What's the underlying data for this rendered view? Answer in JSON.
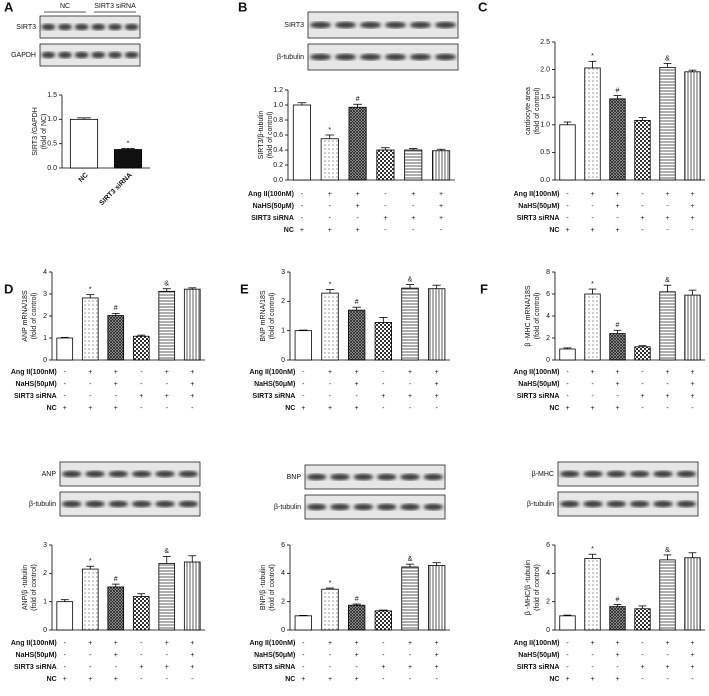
{
  "chart_data": [
    {
      "type": "bar",
      "label": "A",
      "blot_groups": [
        "NC",
        "SIRT3 siRNA"
      ],
      "blot_labels": [
        "SIRT3",
        "GAPDH"
      ],
      "ylabel": [
        "SIRT3 /GAPDH",
        "(fold of NC)"
      ],
      "categories": [
        "NC",
        "SIRT3 siRNA"
      ],
      "values": [
        1.0,
        0.38
      ],
      "errors": [
        0.03,
        0.02
      ],
      "significance": [
        null,
        "*"
      ],
      "ylim": [
        0,
        1.5
      ],
      "yticks": [
        {
          "value": 0,
          "label": "0.0"
        },
        0.5,
        {
          "value": 1,
          "label": "1.0"
        },
        1.5
      ]
    },
    {
      "type": "bar",
      "label": "B",
      "blot_labels": [
        "SIRT3",
        "β-tubulin"
      ],
      "ylabel": [
        "SIRT3/β-tubulin",
        "(fold of control)"
      ],
      "values": [
        1.0,
        0.55,
        0.97,
        0.4,
        0.4,
        0.39
      ],
      "errors": [
        0.03,
        0.05,
        0.04,
        0.03,
        0.02,
        0.02
      ],
      "significance": [
        null,
        "*",
        "#",
        null,
        null,
        null
      ],
      "ylim": [
        0,
        1.2
      ],
      "yticks": [
        {
          "value": 0,
          "label": "0.0"
        },
        0.2,
        0.4,
        0.6,
        0.8,
        {
          "value": 1,
          "label": "1.0"
        },
        1.2
      ],
      "treatments": [
        {
          "name": "Ang II(100nM)",
          "signs": [
            "-",
            "+",
            "+",
            "-",
            "+",
            "+"
          ]
        },
        {
          "name": "NaHS(50μM)",
          "signs": [
            "-",
            "-",
            "+",
            "-",
            "-",
            "+"
          ]
        },
        {
          "name": "SIRT3 siRNA",
          "signs": [
            "-",
            "-",
            "-",
            "+",
            "+",
            "+"
          ]
        },
        {
          "name": "NC",
          "signs": [
            "+",
            "+",
            "+",
            "-",
            "-",
            "-"
          ]
        }
      ]
    },
    {
      "type": "bar",
      "label": "C",
      "ylabel": [
        "cardiocyte area",
        "(fold of control)"
      ],
      "values": [
        1.0,
        2.03,
        1.47,
        1.08,
        2.04,
        1.96
      ],
      "errors": [
        0.05,
        0.12,
        0.06,
        0.05,
        0.07,
        0.03
      ],
      "significance": [
        null,
        "*",
        "#",
        null,
        "&",
        null
      ],
      "ylim": [
        0,
        2.5
      ],
      "yticks": [
        {
          "value": 0,
          "label": "0.0"
        },
        0.5,
        {
          "value": 1,
          "label": "1.0"
        },
        1.5,
        {
          "value": 2,
          "label": "2.0"
        },
        2.5
      ],
      "treatments": [
        {
          "name": "Ang II(100nM)",
          "signs": [
            "-",
            "+",
            "+",
            "-",
            "+",
            "+"
          ]
        },
        {
          "name": "NaHS(50μM)",
          "signs": [
            "-",
            "-",
            "+",
            "-",
            "-",
            "+"
          ]
        },
        {
          "name": "SIRT3 siRNA",
          "signs": [
            "-",
            "-",
            "-",
            "+",
            "+",
            "+"
          ]
        },
        {
          "name": "NC",
          "signs": [
            "+",
            "+",
            "+",
            "-",
            "-",
            "-"
          ]
        }
      ]
    },
    {
      "type": "bar",
      "label": "D",
      "ylabel": [
        "ANP mRNA/18S",
        "(fold of control)"
      ],
      "values": [
        1.0,
        2.82,
        2.02,
        1.08,
        3.12,
        3.22
      ],
      "errors": [
        0.03,
        0.15,
        0.1,
        0.05,
        0.12,
        0.06
      ],
      "significance": [
        null,
        "*",
        "#",
        null,
        "&",
        null
      ],
      "ylim": [
        0,
        4
      ],
      "yticks": [
        0,
        1,
        2,
        3,
        4
      ],
      "treatments": [
        {
          "name": "Ang II(100nM)",
          "signs": [
            "-",
            "+",
            "+",
            "-",
            "+",
            "+"
          ]
        },
        {
          "name": "NaHS(50μM)",
          "signs": [
            "-",
            "-",
            "+",
            "-",
            "-",
            "+"
          ]
        },
        {
          "name": "SIRT3 siRNA",
          "signs": [
            "-",
            "-",
            "-",
            "+",
            "+",
            "+"
          ]
        },
        {
          "name": "NC",
          "signs": [
            "+",
            "+",
            "+",
            "-",
            "-",
            "-"
          ]
        }
      ]
    },
    {
      "type": "bar",
      "label": "E",
      "ylabel": [
        "BNP mRNA/18S",
        "(fold of control)"
      ],
      "values": [
        1.0,
        2.28,
        1.7,
        1.28,
        2.45,
        2.43
      ],
      "errors": [
        0.02,
        0.12,
        0.1,
        0.17,
        0.12,
        0.12
      ],
      "significance": [
        null,
        "*",
        "#",
        null,
        "&",
        null
      ],
      "ylim": [
        0,
        3
      ],
      "yticks": [
        0,
        1,
        2,
        3
      ],
      "treatments": [
        {
          "name": "Ang II(100nM)",
          "signs": [
            "-",
            "+",
            "+",
            "-",
            "+",
            "+"
          ]
        },
        {
          "name": "NaHS(50μM)",
          "signs": [
            "-",
            "-",
            "+",
            "-",
            "-",
            "+"
          ]
        },
        {
          "name": "SIRT3 siRNA",
          "signs": [
            "-",
            "-",
            "-",
            "+",
            "+",
            "+"
          ]
        },
        {
          "name": "NC",
          "signs": [
            "+",
            "+",
            "+",
            "-",
            "-",
            "-"
          ]
        }
      ]
    },
    {
      "type": "bar",
      "label": "F",
      "ylabel": [
        "β -MHC mRNA/18S",
        "(fold of control)"
      ],
      "values": [
        1.0,
        6.0,
        2.4,
        1.2,
        6.2,
        5.9
      ],
      "errors": [
        0.1,
        0.45,
        0.3,
        0.1,
        0.6,
        0.45
      ],
      "significance": [
        null,
        "*",
        "#",
        null,
        "&",
        null
      ],
      "ylim": [
        0,
        8
      ],
      "yticks": [
        0,
        2,
        4,
        6,
        8
      ],
      "treatments": [
        {
          "name": "Ang II(100nM)",
          "signs": [
            "-",
            "+",
            "+",
            "-",
            "+",
            "+"
          ]
        },
        {
          "name": "NaHS(50μM)",
          "signs": [
            "-",
            "-",
            "+",
            "-",
            "-",
            "+"
          ]
        },
        {
          "name": "SIRT3 siRNA",
          "signs": [
            "-",
            "-",
            "-",
            "+",
            "+",
            "+"
          ]
        },
        {
          "name": "NC",
          "signs": [
            "+",
            "+",
            "+",
            "-",
            "-",
            "-"
          ]
        }
      ]
    },
    {
      "type": "bar",
      "blot_labels": [
        "ANP",
        "β-tubulin"
      ],
      "ylabel": [
        "ANP/β -tubulin",
        "(fold of control)"
      ],
      "values": [
        1.0,
        2.15,
        1.52,
        1.18,
        2.35,
        2.4
      ],
      "errors": [
        0.07,
        0.1,
        0.1,
        0.1,
        0.25,
        0.22
      ],
      "significance": [
        null,
        "*",
        "#",
        null,
        "&",
        null
      ],
      "ylim": [
        0,
        3
      ],
      "yticks": [
        0,
        1,
        2,
        3
      ],
      "treatments": [
        {
          "name": "Ang II(100nM)",
          "signs": [
            "-",
            "+",
            "+",
            "-",
            "+",
            "+"
          ]
        },
        {
          "name": "NaHS(50μM)",
          "signs": [
            "-",
            "-",
            "+",
            "-",
            "-",
            "+"
          ]
        },
        {
          "name": "SIRT3 siRNA",
          "signs": [
            "-",
            "-",
            "-",
            "+",
            "+",
            "+"
          ]
        },
        {
          "name": "NC",
          "signs": [
            "+",
            "+",
            "+",
            "-",
            "-",
            "-"
          ]
        }
      ]
    },
    {
      "type": "bar",
      "blot_labels": [
        "BNP",
        "β-tubulin"
      ],
      "ylabel": [
        "BNP/β -tubulin",
        "(fold of control)"
      ],
      "values": [
        1.0,
        2.88,
        1.75,
        1.35,
        4.45,
        4.55
      ],
      "errors": [
        0.03,
        0.08,
        0.08,
        0.06,
        0.2,
        0.2
      ],
      "significance": [
        null,
        "*",
        "#",
        null,
        "&",
        null
      ],
      "ylim": [
        0,
        6
      ],
      "yticks": [
        0,
        2,
        4,
        6
      ],
      "treatments": [
        {
          "name": "Ang II(100nM)",
          "signs": [
            "-",
            "+",
            "+",
            "-",
            "+",
            "+"
          ]
        },
        {
          "name": "NaHS(50μM)",
          "signs": [
            "-",
            "-",
            "+",
            "-",
            "-",
            "+"
          ]
        },
        {
          "name": "SIRT3 siRNA",
          "signs": [
            "-",
            "-",
            "-",
            "+",
            "+",
            "+"
          ]
        },
        {
          "name": "NC",
          "signs": [
            "+",
            "+",
            "+",
            "-",
            "-",
            "-"
          ]
        }
      ]
    },
    {
      "type": "bar",
      "blot_labels": [
        "β-MHC",
        "β-tubulin"
      ],
      "ylabel": [
        "β -MHC/β -tubulin",
        "(fold of control)"
      ],
      "values": [
        1.0,
        5.05,
        1.65,
        1.5,
        4.95,
        5.1
      ],
      "errors": [
        0.05,
        0.3,
        0.15,
        0.2,
        0.35,
        0.35
      ],
      "significance": [
        null,
        "*",
        "#",
        null,
        "&",
        null
      ],
      "ylim": [
        0,
        6
      ],
      "yticks": [
        0,
        2,
        4,
        6
      ],
      "treatments": [
        {
          "name": "Ang II(100nM)",
          "signs": [
            "-",
            "+",
            "+",
            "-",
            "+",
            "+"
          ]
        },
        {
          "name": "NaHS(50μM)",
          "signs": [
            "-",
            "-",
            "+",
            "-",
            "-",
            "+"
          ]
        },
        {
          "name": "SIRT3 siRNA",
          "signs": [
            "-",
            "-",
            "-",
            "+",
            "+",
            "+"
          ]
        },
        {
          "name": "NC",
          "signs": [
            "+",
            "+",
            "+",
            "-",
            "-",
            "-"
          ]
        }
      ]
    }
  ]
}
